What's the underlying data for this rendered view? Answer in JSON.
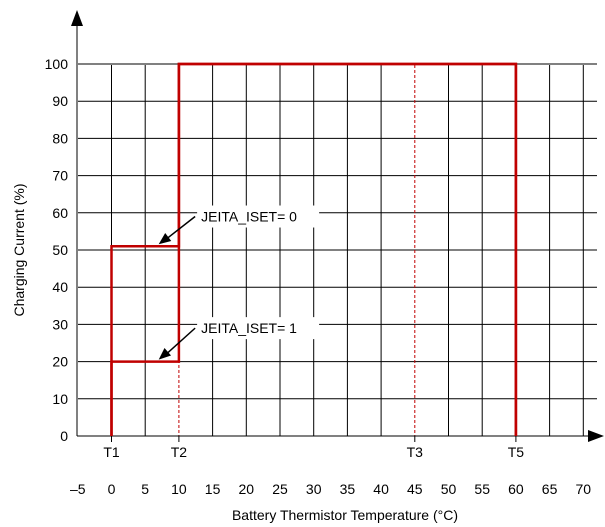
{
  "chart_data": {
    "type": "line",
    "title": "",
    "xlabel": "Battery Thermistor Temperature (°C)",
    "ylabel": "Charging Current (%)",
    "xlim": [
      -5,
      70
    ],
    "ylim": [
      0,
      100
    ],
    "x_ticks": [
      -5,
      0,
      5,
      10,
      15,
      20,
      25,
      30,
      35,
      40,
      45,
      50,
      55,
      60,
      65,
      70
    ],
    "y_ticks": [
      0,
      10,
      20,
      30,
      40,
      50,
      60,
      70,
      80,
      90,
      100
    ],
    "grid": true,
    "threshold_markers": [
      {
        "label": "T1",
        "x": 0
      },
      {
        "label": "T2",
        "x": 10
      },
      {
        "label": "T3",
        "x": 45
      },
      {
        "label": "T5",
        "x": 60
      }
    ],
    "series": [
      {
        "name": "JEITA_ISET= 0",
        "color": "#c00000",
        "points": [
          [
            0,
            0
          ],
          [
            0,
            51
          ],
          [
            10,
            51
          ],
          [
            10,
            100
          ],
          [
            60,
            100
          ],
          [
            60,
            0
          ]
        ]
      },
      {
        "name": "JEITA_ISET= 1",
        "color": "#c00000",
        "points": [
          [
            0,
            0
          ],
          [
            0,
            20
          ],
          [
            10,
            20
          ],
          [
            10,
            100
          ],
          [
            60,
            100
          ],
          [
            60,
            0
          ]
        ]
      }
    ],
    "annotations": [
      {
        "text": "JEITA_ISET= 0",
        "target": [
          7,
          51
        ],
        "anchor": [
          13,
          59
        ]
      },
      {
        "text": "JEITA_ISET= 1",
        "target": [
          7,
          20
        ],
        "anchor": [
          13,
          29
        ]
      }
    ],
    "dashed_vertical_lines": [
      10,
      45
    ],
    "colors": {
      "curve": "#c00000",
      "grid": "#000000",
      "axis": "#000000"
    }
  }
}
